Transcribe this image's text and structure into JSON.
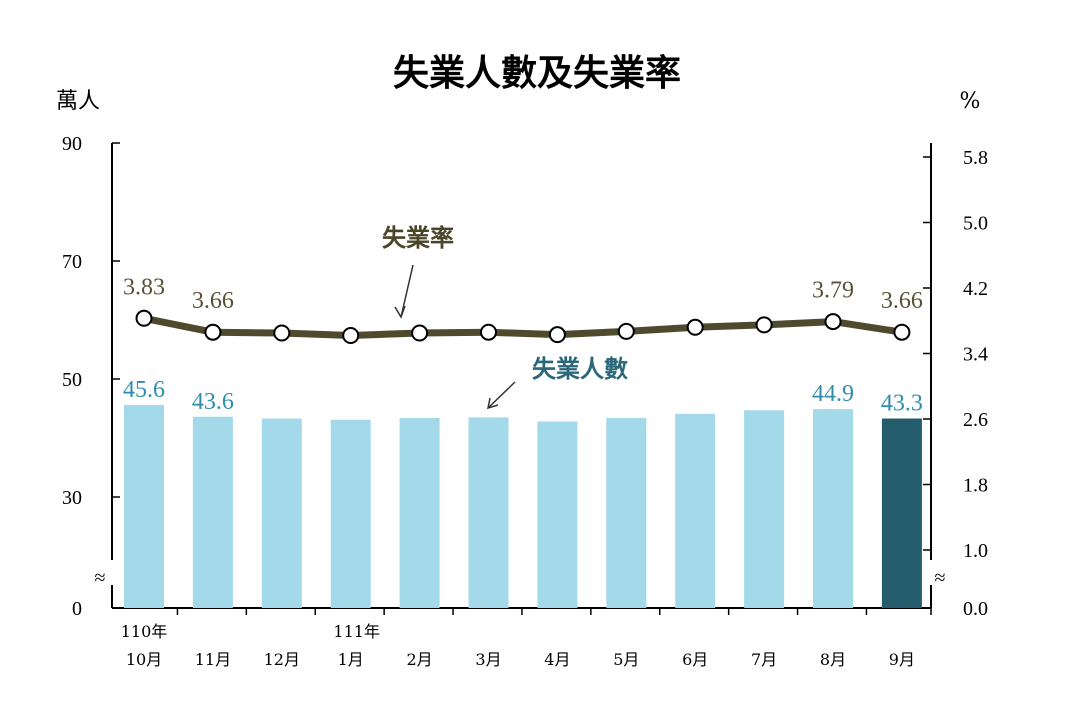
{
  "chart_data": {
    "type": "bar+line",
    "title": "失業人數及失業率",
    "left_unit": "萬人",
    "right_unit": "%",
    "categories": [
      {
        "year": "110年",
        "month": "10月"
      },
      {
        "year": "",
        "month": "11月"
      },
      {
        "year": "",
        "month": "12月"
      },
      {
        "year": "111年",
        "month": "1月"
      },
      {
        "year": "",
        "month": "2月"
      },
      {
        "year": "",
        "month": "3月"
      },
      {
        "year": "",
        "month": "4月"
      },
      {
        "year": "",
        "month": "5月"
      },
      {
        "year": "",
        "month": "6月"
      },
      {
        "year": "",
        "month": "7月"
      },
      {
        "year": "",
        "month": "8月"
      },
      {
        "year": "",
        "month": "9月"
      }
    ],
    "left_axis": {
      "ticks": [
        "0",
        "30",
        "50",
        "70",
        "90"
      ],
      "tick_values": [
        0,
        30,
        50,
        70,
        90
      ],
      "broken": true
    },
    "right_axis": {
      "ticks": [
        "0.0",
        "1.0",
        "1.8",
        "2.6",
        "3.4",
        "4.2",
        "5.0",
        "5.8"
      ],
      "tick_values": [
        0.0,
        1.0,
        1.8,
        2.6,
        3.4,
        4.2,
        5.0,
        5.8
      ],
      "broken": true
    },
    "series": [
      {
        "name": "失業人數",
        "kind": "bar",
        "axis": "left",
        "values": [
          45.6,
          43.6,
          43.3,
          43.1,
          43.4,
          43.5,
          42.8,
          43.4,
          44.1,
          44.7,
          44.9,
          43.3
        ],
        "labels": [
          "45.6",
          "43.6",
          "",
          "",
          "",
          "",
          "",
          "",
          "",
          "",
          "44.9",
          "43.3"
        ]
      },
      {
        "name": "失業率",
        "kind": "line",
        "axis": "right",
        "values": [
          3.83,
          3.66,
          3.65,
          3.62,
          3.65,
          3.66,
          3.63,
          3.67,
          3.72,
          3.75,
          3.79,
          3.66
        ],
        "labels": [
          "3.83",
          "3.66",
          "",
          "",
          "",
          "",
          "",
          "",
          "",
          "",
          "3.79",
          "3.66"
        ]
      }
    ],
    "colors": {
      "bar": "#a4d9ea",
      "bar_highlight": "#245c6c",
      "bar_label": "#2f8fab",
      "line": "#4f4a2e",
      "rate_annot": "#4a4528",
      "count_annot": "#2a6779",
      "axis": "#000000"
    },
    "grid": false
  }
}
